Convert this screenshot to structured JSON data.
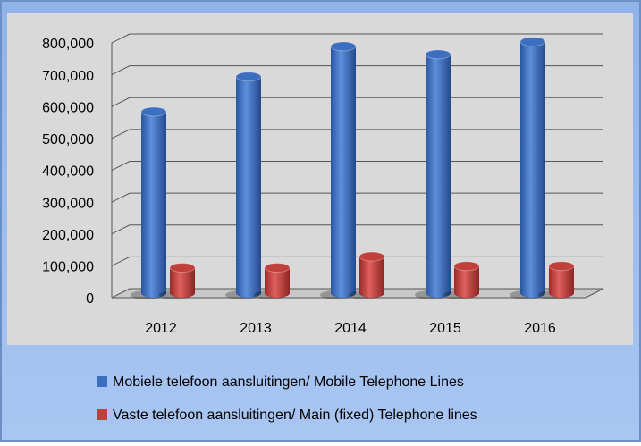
{
  "chart_data": {
    "type": "bar",
    "categories": [
      "2012",
      "2013",
      "2014",
      "2015",
      "2016"
    ],
    "series": [
      {
        "name": "Mobiele telefoon aansluitingen/ Mobile Telephone Lines",
        "color": "#3c6fbf",
        "values": [
          570000,
          680000,
          775000,
          750000,
          790000
        ]
      },
      {
        "name": "Vaste telefoon aansluitingen/ Main (fixed) Telephone lines",
        "color": "#c0403c",
        "values": [
          80000,
          80000,
          115000,
          85000,
          85000
        ]
      }
    ],
    "ylim": [
      0,
      800000
    ],
    "yticks": [
      0,
      {
        "value": 100000,
        "label": "100,000"
      },
      {
        "value": 200000,
        "label": "200,000"
      },
      {
        "value": 300000,
        "label": "300,000"
      },
      {
        "value": 400000,
        "label": "400,000"
      },
      {
        "value": 500000,
        "label": "500,000"
      },
      {
        "value": 600000,
        "label": "600,000"
      },
      {
        "value": 700000,
        "label": "700,000"
      },
      {
        "value": 800000,
        "label": "800,000"
      }
    ],
    "grid": true
  }
}
